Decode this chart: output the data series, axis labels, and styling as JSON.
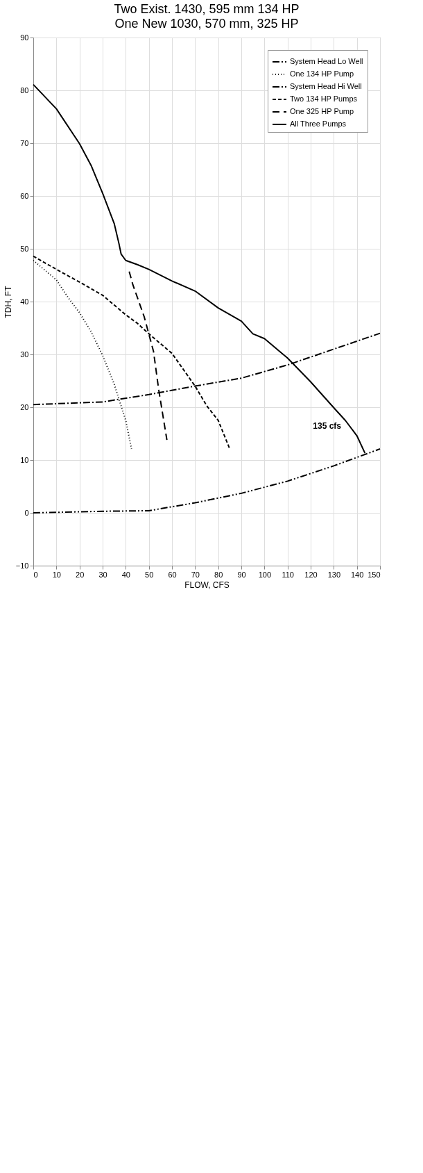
{
  "chart_data": {
    "type": "line",
    "title": "Two Exist. 1430, 595 mm 134 HP",
    "subtitle": "One New 1030, 570 mm, 325 HP",
    "xlabel": "FLOW, CFS",
    "ylabel": "TDH, FT",
    "xlim": [
      0,
      150
    ],
    "xticks": [
      0,
      10,
      20,
      30,
      40,
      50,
      60,
      70,
      80,
      90,
      100,
      110,
      120,
      130,
      140,
      150
    ],
    "ylim": [
      -10,
      90
    ],
    "yticks": [
      -10,
      0,
      10,
      20,
      30,
      40,
      50,
      60,
      70,
      80,
      90
    ],
    "grid": true,
    "legend": "top right",
    "marker": "none",
    "series": [
      {
        "name": "System Head Lo Well",
        "color": "#000000",
        "line_style": "dashdot",
        "x": [
          0,
          30,
          50,
          70,
          90,
          110,
          130,
          150
        ],
        "values": [
          20.5,
          21,
          22.4,
          24,
          25.5,
          28,
          31,
          34
        ]
      },
      {
        "name": "One 134 HP Pump",
        "color": "#000000",
        "line_style": "dotted",
        "x": [
          0,
          10,
          15,
          20,
          25,
          30,
          35,
          37,
          40,
          42.5
        ],
        "values": [
          47.8,
          44.1,
          40.8,
          37.9,
          34.3,
          29.8,
          24.4,
          21.6,
          17.5,
          12.1
        ]
      },
      {
        "name": "System Head Hi Well",
        "color": "#000000",
        "line_style": "dashdotdot",
        "x": [
          0,
          30,
          50,
          70,
          90,
          110,
          130,
          140,
          150
        ],
        "values": [
          0,
          0.3,
          0.4,
          1.9,
          3.7,
          6,
          8.9,
          10.5,
          12.1
        ]
      },
      {
        "name": "Two  134 HP Pumps",
        "color": "#000000",
        "line_style": "dashed",
        "x": [
          0,
          10,
          20,
          30,
          40,
          45,
          50,
          60,
          70,
          75,
          80,
          85
        ],
        "values": [
          48.6,
          46.1,
          43.7,
          41.2,
          37.5,
          35.9,
          33.9,
          30.2,
          24,
          20.3,
          17.5,
          12.1
        ]
      },
      {
        "name": "One 325 HP Pump",
        "color": "#000000",
        "line_style": "longdashed",
        "x": [
          41.5,
          43,
          48,
          52,
          54.3,
          57.8
        ],
        "values": [
          45.7,
          43.3,
          37.1,
          30.6,
          23.2,
          13.8
        ]
      },
      {
        "name": "All Three Pumps",
        "color": "#000000",
        "line_style": "solid",
        "x": [
          0,
          10,
          20,
          25,
          30,
          35,
          37,
          38,
          40,
          45,
          50,
          60,
          70,
          80,
          90,
          95,
          100,
          110,
          120,
          130,
          135,
          140,
          143.5
        ],
        "values": [
          81.1,
          76.5,
          69.9,
          65.8,
          60.5,
          54.8,
          51.1,
          49,
          47.8,
          47,
          46.1,
          43.9,
          42,
          38.8,
          36.3,
          33.9,
          33,
          29.3,
          24.8,
          19.9,
          17.5,
          14.6,
          11.3
        ]
      }
    ],
    "annotations": [
      {
        "text": "135 cfs",
        "x": 135,
        "y": 17.5
      }
    ]
  }
}
